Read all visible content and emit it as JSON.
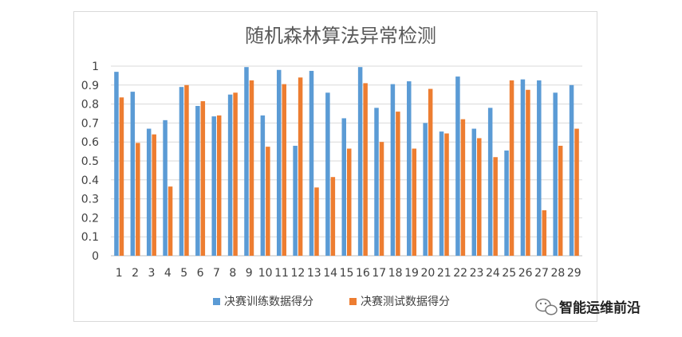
{
  "chart_data": {
    "type": "bar",
    "title": "随机森林算法异常检测",
    "categories": [
      "1",
      "2",
      "3",
      "4",
      "5",
      "6",
      "7",
      "8",
      "9",
      "10",
      "11",
      "12",
      "13",
      "14",
      "15",
      "16",
      "17",
      "18",
      "19",
      "20",
      "21",
      "22",
      "23",
      "24",
      "25",
      "26",
      "27",
      "28",
      "29"
    ],
    "series": [
      {
        "name": "决赛训练数据得分",
        "color": "#5b9bd5",
        "values": [
          0.97,
          0.865,
          0.67,
          0.715,
          0.89,
          0.79,
          0.735,
          0.85,
          0.995,
          0.74,
          0.98,
          0.58,
          0.975,
          0.86,
          0.725,
          0.995,
          0.78,
          0.905,
          0.92,
          0.7,
          0.655,
          0.945,
          0.67,
          0.78,
          0.555,
          0.93,
          0.925,
          0.86,
          0.9
        ]
      },
      {
        "name": "决赛测试数据得分",
        "color": "#ed7d31",
        "values": [
          0.835,
          0.595,
          0.64,
          0.365,
          0.9,
          0.815,
          0.74,
          0.86,
          0.925,
          0.575,
          0.905,
          0.94,
          0.36,
          0.415,
          0.565,
          0.91,
          0.6,
          0.76,
          0.565,
          0.88,
          0.645,
          0.72,
          0.62,
          0.52,
          0.925,
          0.875,
          0.24,
          0.58,
          0.67
        ]
      }
    ],
    "ylim": [
      0,
      1
    ],
    "yticks": [
      "0",
      "0.1",
      "0.2",
      "0.3",
      "0.4",
      "0.5",
      "0.6",
      "0.7",
      "0.8",
      "0.9",
      "1"
    ],
    "grid": true,
    "legend_position": "bottom"
  },
  "watermark": {
    "text": "智能运维前沿",
    "icon": "wechat-icon"
  }
}
